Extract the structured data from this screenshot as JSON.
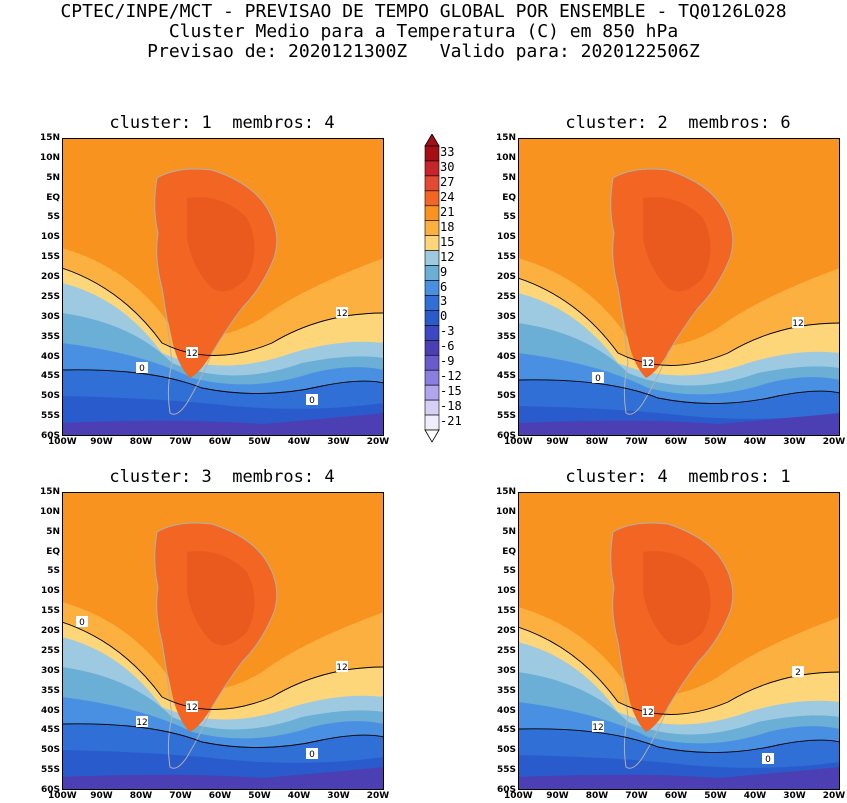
{
  "header": {
    "line1": "CPTEC/INPE/MCT - PREVISAO DE TEMPO GLOBAL POR ENSEMBLE - TQ0126L028",
    "line2": "Cluster Medio para a Temperatura (C) em 850 hPa",
    "line3": "Previsao de: 2020121300Z   Valido para: 2020122506Z"
  },
  "panels": [
    {
      "title": "cluster: 1  membros: 4",
      "contour_labels": [
        "12",
        "12",
        "0",
        "0"
      ]
    },
    {
      "title": "cluster: 2  membros: 6",
      "contour_labels": [
        "12",
        "12",
        "0"
      ]
    },
    {
      "title": "cluster: 3  membros: 4",
      "contour_labels": [
        "12",
        "12",
        "12",
        "0",
        "0"
      ]
    },
    {
      "title": "cluster: 4  membros: 1",
      "contour_labels": [
        "2",
        "12",
        "12",
        "0"
      ]
    }
  ],
  "axes": {
    "lat_ticks": [
      "15N",
      "10N",
      "5N",
      "EQ",
      "5S",
      "10S",
      "15S",
      "20S",
      "25S",
      "30S",
      "35S",
      "40S",
      "45S",
      "50S",
      "55S",
      "60S"
    ],
    "lon_ticks": [
      "100W",
      "90W",
      "80W",
      "70W",
      "60W",
      "50W",
      "40W",
      "30W",
      "20W"
    ]
  },
  "colorbar": {
    "labels": [
      "33",
      "30",
      "27",
      "24",
      "21",
      "18",
      "15",
      "12",
      "9",
      "6",
      "3",
      "0",
      "-3",
      "-6",
      "-9",
      "-12",
      "-15",
      "-18",
      "-21"
    ],
    "colors": [
      "#a50f15",
      "#c8242c",
      "#e34a33",
      "#f26522",
      "#f7931e",
      "#fbb040",
      "#fdd67a",
      "#9ecae1",
      "#6baed6",
      "#4a90e2",
      "#2f6fd6",
      "#2a5bcc",
      "#3a49c2",
      "#4b3fb3",
      "#6a5acd",
      "#8c7ee0",
      "#b1a6ee",
      "#d6d0f7",
      "#f0eefc"
    ]
  }
}
